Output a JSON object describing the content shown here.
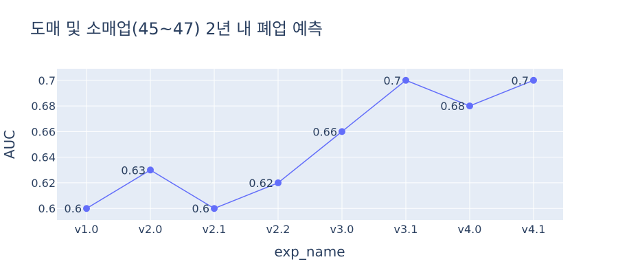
{
  "chart_data": {
    "type": "line",
    "title": "도매 및 소매업(45~47) 2년 내 폐업 예측",
    "xlabel": "exp_name",
    "ylabel": "AUC",
    "categories": [
      "v1.0",
      "v2.0",
      "v2.1",
      "v2.2",
      "v3.0",
      "v3.1",
      "v4.0",
      "v4.1"
    ],
    "series": [
      {
        "values": [
          0.6,
          0.63,
          0.6,
          0.62,
          0.66,
          0.7,
          0.68,
          0.7
        ],
        "labels": [
          "0.6",
          "0.63",
          "0.6",
          "0.62",
          "0.66",
          "0.7",
          "0.68",
          "0.7"
        ]
      }
    ],
    "yticks": [
      0.6,
      0.62,
      0.64,
      0.66,
      0.68,
      0.7
    ],
    "ytick_labels": [
      "0.6",
      "0.62",
      "0.64",
      "0.66",
      "0.68",
      "0.7"
    ],
    "ylim": [
      0.591,
      0.709
    ],
    "grid": true,
    "colors": {
      "line": "#636efa",
      "plot_bg": "#e5ecf6",
      "grid": "#ffffff",
      "text": "#2a3f5f"
    }
  }
}
